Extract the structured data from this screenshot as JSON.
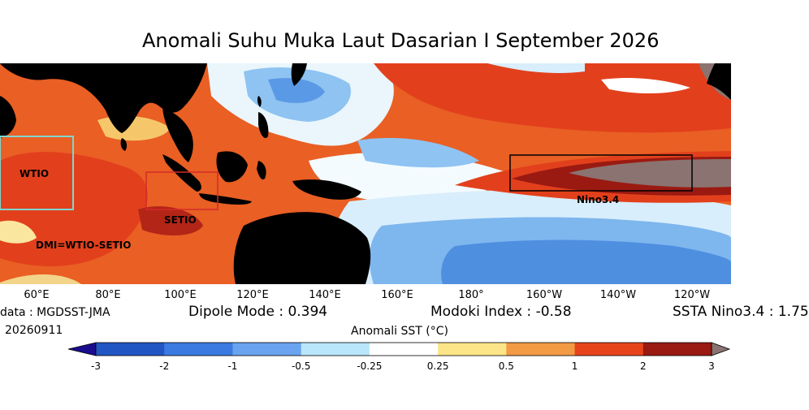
{
  "title": "Anomali Suhu Muka Laut Dasarian I September 2026",
  "lon_ticks": [
    "60°E",
    "80°E",
    "100°E",
    "120°E",
    "140°E",
    "160°E",
    "180°",
    "160°W",
    "140°W",
    "120°W"
  ],
  "regions": {
    "wtio": "WTIO",
    "setio": "SETIO",
    "nino34": "Nino3.4",
    "dmi_formula": "DMI=WTIO-SETIO"
  },
  "info": {
    "data_source": "data : MGDSST-JMA",
    "date": "20260911",
    "dipole_mode": "Dipole Mode : 0.394",
    "modoki_index": "Modoki Index : -0.58",
    "ssta_label": "SSTA Nino3.4 : 1.75"
  },
  "colorbar": {
    "title": "Anomali SST (°C)",
    "labels": [
      "-3",
      "-2",
      "-1",
      "-0.5",
      "-0.25",
      "0.25",
      "0.5",
      "1",
      "2",
      "3"
    ],
    "colors": [
      "#2255c4",
      "#3b7ae0",
      "#6aa4f0",
      "#b9e6fa",
      "#ffffff",
      "#fce588",
      "#f29a44",
      "#e8441c",
      "#9a1a12"
    ],
    "under_color": "#1a0d8c",
    "over_color": "#8a7370"
  },
  "land_color": "#000000"
}
